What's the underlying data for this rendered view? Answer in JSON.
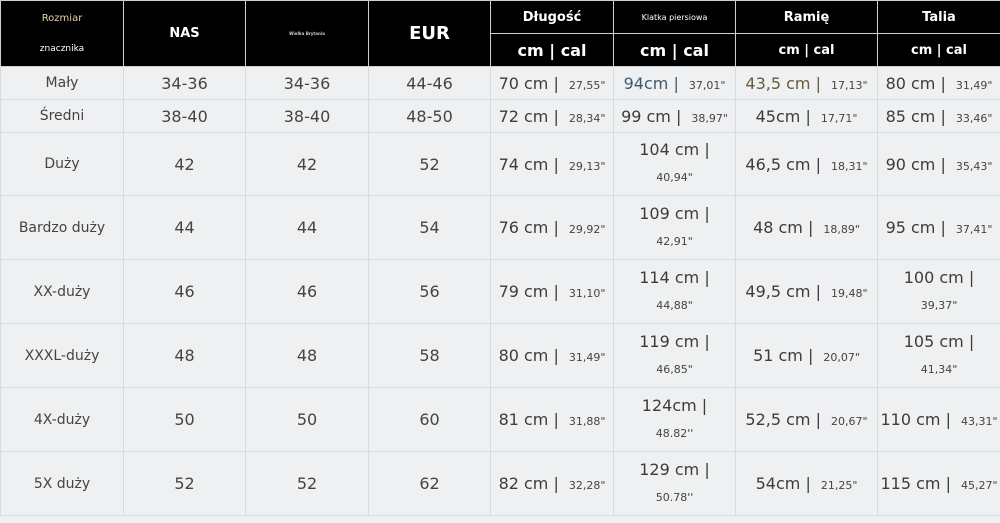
{
  "header": {
    "size_tag_line1": "Rozmiar",
    "size_tag_line2": "znacznika",
    "us": "NAS",
    "uk": "Wielka Brytania",
    "eur": "EUR",
    "length": "Długość",
    "chest": "Klatka piersiowa",
    "shoulder": "Ramię",
    "waist": "Talia",
    "length_units": "cm |  cal",
    "chest_units": "cm |  cal",
    "shoulder_units": "cm | cal",
    "waist_units": "cm | cal"
  },
  "rows": [
    {
      "size": "Mały",
      "us": "34-36",
      "uk": "34-36",
      "eur": "44-46",
      "length_cm": "70 cm |",
      "length_cal": "27,55\"",
      "chest_cm": "94cm |",
      "chest_cal": "37,01\"",
      "shoulder_cm": "43,5 cm |",
      "shoulder_cal": "17,13\"",
      "waist_cm": "80 cm |",
      "waist_cal": "31,49\""
    },
    {
      "size": "Średni",
      "us": "38-40",
      "uk": "38-40",
      "eur": "48-50",
      "length_cm": "72 cm |",
      "length_cal": "28,34\"",
      "chest_cm": "99 cm |",
      "chest_cal": "38,97\"",
      "shoulder_cm": "45cm |",
      "shoulder_cal": "17,71\"",
      "waist_cm": "85 cm |",
      "waist_cal": "33,46\""
    },
    {
      "size": "Duży",
      "us": "42",
      "uk": "42",
      "eur": "52",
      "length_cm": "74 cm |",
      "length_cal": "29,13\"",
      "chest_cm": "104 cm |",
      "chest_cal": "40,94\"",
      "shoulder_cm": "46,5 cm |",
      "shoulder_cal": "18,31\"",
      "waist_cm": "90 cm |",
      "waist_cal": "35,43\""
    },
    {
      "size": "Bardzo duży",
      "us": "44",
      "uk": "44",
      "eur": "54",
      "length_cm": "76 cm |",
      "length_cal": "29,92\"",
      "chest_cm": "109 cm |",
      "chest_cal": "42,91\"",
      "shoulder_cm": "48 cm |",
      "shoulder_cal": "18,89\"",
      "waist_cm": "95 cm |",
      "waist_cal": "37,41\""
    },
    {
      "size": "XX-duży",
      "us": "46",
      "uk": "46",
      "eur": "56",
      "length_cm": "79 cm |",
      "length_cal": "31,10\"",
      "chest_cm": "114 cm |",
      "chest_cal": "44,88\"",
      "shoulder_cm": "49,5 cm |",
      "shoulder_cal": "19,48\"",
      "waist_cm": "100 cm |",
      "waist_cal": "39,37\""
    },
    {
      "size": "XXXL-duży",
      "us": "48",
      "uk": "48",
      "eur": "58",
      "length_cm": "80 cm |",
      "length_cal": "31,49\"",
      "chest_cm": "119 cm |",
      "chest_cal": "46,85\"",
      "shoulder_cm": "51 cm |",
      "shoulder_cal": "20,07\"",
      "waist_cm": "105 cm |",
      "waist_cal": "41,34\""
    },
    {
      "size": "4X-duży",
      "us": "50",
      "uk": "50",
      "eur": "60",
      "length_cm": "81 cm |",
      "length_cal": "31,88\"",
      "chest_cm": "124cm |",
      "chest_cal": "48.82''",
      "shoulder_cm": "52,5 cm |",
      "shoulder_cal": "20,67\"",
      "waist_cm": "110 cm |",
      "waist_cal": "43,31\""
    },
    {
      "size": "5X duży",
      "us": "52",
      "uk": "52",
      "eur": "62",
      "length_cm": "82 cm |",
      "length_cal": "32,28\"",
      "chest_cm": "129 cm |",
      "chest_cal": "50.78''",
      "shoulder_cm": "54cm |",
      "shoulder_cal": "21,25\"",
      "waist_cm": "115 cm |",
      "waist_cal": "45,27\""
    }
  ]
}
